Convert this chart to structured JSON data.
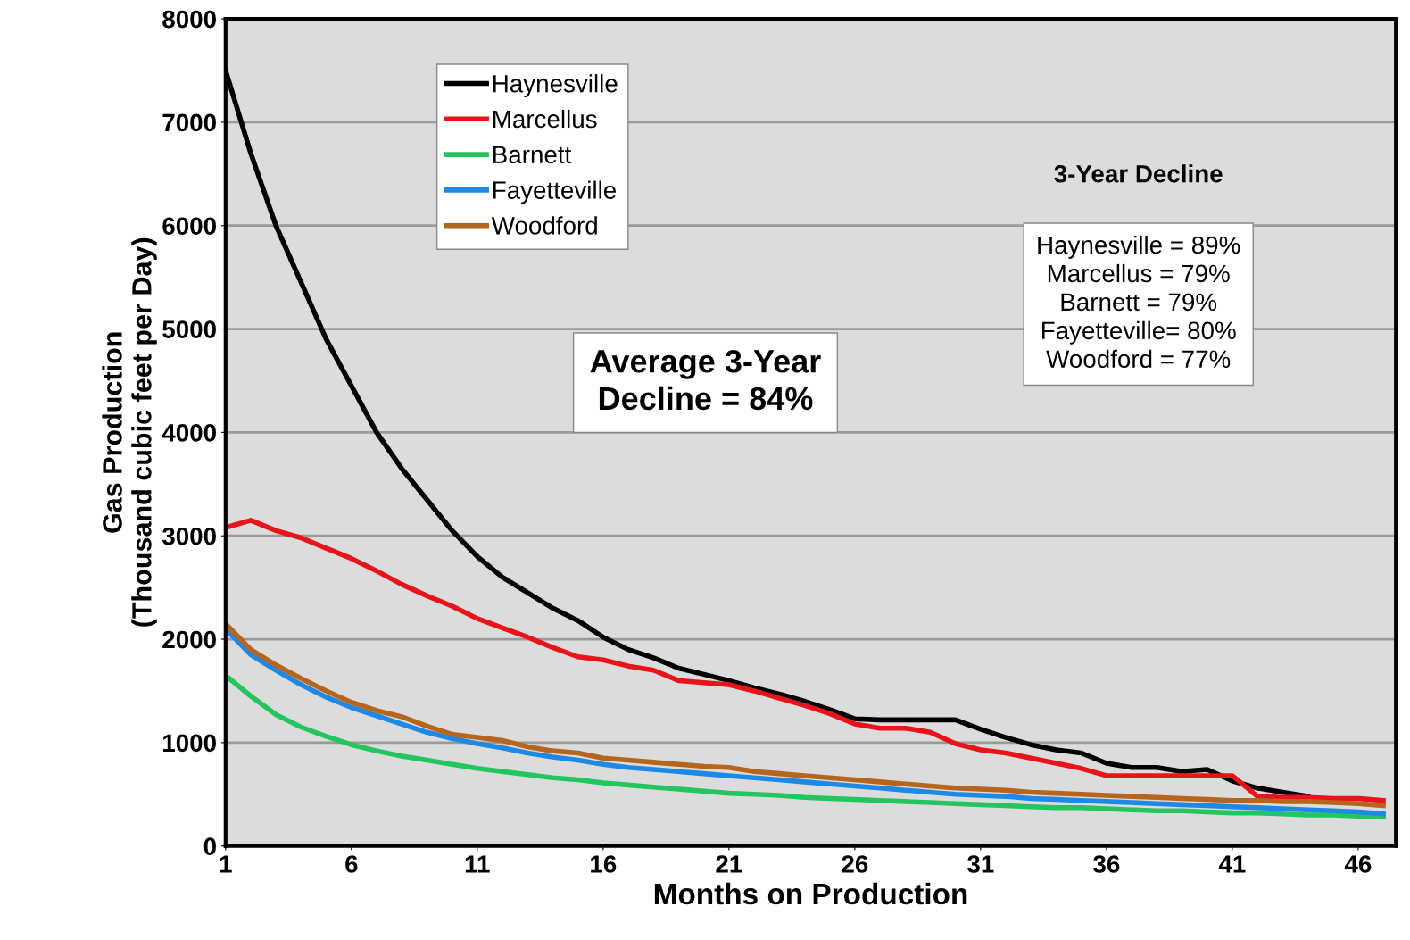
{
  "chart_data": {
    "type": "line",
    "xlabel": "Months on Production",
    "ylabel": "Gas Production\n(Thousand cubic feet per Day)",
    "x": [
      1,
      2,
      3,
      4,
      5,
      6,
      7,
      8,
      9,
      10,
      11,
      12,
      13,
      14,
      15,
      16,
      17,
      18,
      19,
      20,
      21,
      22,
      23,
      24,
      25,
      26,
      27,
      28,
      29,
      30,
      31,
      32,
      33,
      34,
      35,
      36,
      37,
      38,
      39,
      40,
      41,
      42,
      43,
      44,
      45,
      46,
      47
    ],
    "series": [
      {
        "name": "Haynesville",
        "color": "#000000",
        "values": [
          7500,
          6700,
          6000,
          5450,
          4900,
          4450,
          4000,
          3650,
          3350,
          3050,
          2800,
          2600,
          2450,
          2300,
          2180,
          2020,
          1900,
          1820,
          1720,
          1660,
          1600,
          1530,
          1470,
          1400,
          1320,
          1230,
          1220,
          1220,
          1220,
          1220,
          1130,
          1050,
          980,
          930,
          900,
          800,
          760,
          760,
          720,
          740,
          630,
          560,
          520,
          480,
          null,
          null,
          null
        ]
      },
      {
        "name": "Marcellus",
        "color": "#e8141b",
        "values": [
          3080,
          3150,
          3050,
          2980,
          2880,
          2780,
          2660,
          2530,
          2420,
          2320,
          2200,
          2110,
          2020,
          1920,
          1830,
          1800,
          1740,
          1700,
          1600,
          1580,
          1560,
          1500,
          1430,
          1360,
          1280,
          1180,
          1140,
          1140,
          1100,
          990,
          930,
          900,
          850,
          800,
          750,
          680,
          680,
          680,
          680,
          680,
          680,
          480,
          470,
          470,
          460,
          460,
          440
        ]
      },
      {
        "name": "Barnett",
        "color": "#22c55e",
        "values": [
          1650,
          1450,
          1270,
          1150,
          1060,
          980,
          920,
          870,
          830,
          790,
          750,
          720,
          690,
          660,
          640,
          610,
          590,
          570,
          550,
          530,
          510,
          500,
          490,
          470,
          460,
          450,
          440,
          430,
          420,
          410,
          400,
          390,
          380,
          370,
          370,
          360,
          350,
          340,
          340,
          330,
          320,
          320,
          310,
          300,
          300,
          290,
          280
        ]
      },
      {
        "name": "Fayetteville",
        "color": "#1e88e5",
        "values": [
          2100,
          1850,
          1700,
          1560,
          1440,
          1340,
          1260,
          1180,
          1100,
          1040,
          990,
          950,
          900,
          860,
          830,
          790,
          760,
          740,
          720,
          700,
          680,
          660,
          640,
          620,
          600,
          580,
          560,
          540,
          520,
          500,
          490,
          480,
          460,
          450,
          440,
          430,
          420,
          410,
          400,
          390,
          380,
          370,
          360,
          350,
          340,
          330,
          310
        ]
      },
      {
        "name": "Woodford",
        "color": "#b5651d",
        "values": [
          2150,
          1900,
          1750,
          1620,
          1500,
          1390,
          1310,
          1250,
          1160,
          1080,
          1050,
          1020,
          960,
          920,
          900,
          850,
          830,
          810,
          790,
          770,
          760,
          720,
          700,
          680,
          660,
          640,
          620,
          600,
          580,
          560,
          550,
          540,
          520,
          510,
          500,
          490,
          480,
          470,
          460,
          450,
          440,
          440,
          430,
          430,
          420,
          410,
          390
        ]
      }
    ],
    "xlim": [
      1,
      47.5
    ],
    "xticks": [
      1,
      6,
      11,
      16,
      21,
      26,
      31,
      36,
      41,
      46
    ],
    "ylim": [
      0,
      8000
    ],
    "yticks": [
      0,
      1000,
      2000,
      3000,
      4000,
      5000,
      6000,
      7000,
      8000
    ],
    "grid": "y",
    "legend": "top left",
    "marker": "none",
    "line_style": "solid",
    "annotations": [
      "Average 3-Year\nDecline = 84%",
      "3-Year Decline",
      "Haynesville = 89%\nMarcellus = 79%\nBarnett = 79%\nFayetteville= 80%\nWoodford = 77%"
    ]
  }
}
